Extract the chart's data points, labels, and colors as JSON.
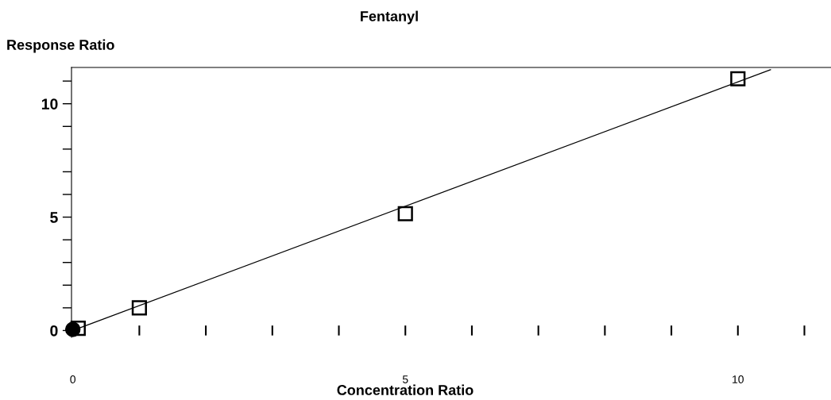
{
  "chart_data": {
    "type": "scatter",
    "title": "Fentanyl",
    "ylabel": "Response Ratio",
    "xlabel": "Concentration Ratio",
    "series": [
      {
        "marker": "square",
        "color": "#000000",
        "x": [
          0.08,
          1,
          5,
          10
        ],
        "values": [
          0.1,
          1.0,
          5.15,
          11.1
        ]
      },
      {
        "marker": "circle",
        "color": "#000000",
        "x": [
          0
        ],
        "values": [
          0.05
        ]
      },
      {
        "type": "line",
        "marker": "none",
        "color": "#000000",
        "x": [
          0,
          10.49
        ],
        "values": [
          0,
          11.5
        ]
      }
    ],
    "xlim": [
      -0.02,
      11.4
    ],
    "ylim": [
      -0.3,
      11.6
    ],
    "xticks": [
      0,
      {
        "value": 1,
        "label": null
      },
      {
        "value": 2,
        "label": null
      },
      {
        "value": 3,
        "label": null
      },
      {
        "value": 4,
        "label": null
      },
      5,
      {
        "value": 6,
        "label": null
      },
      {
        "value": 7,
        "label": null
      },
      {
        "value": 8,
        "label": null
      },
      {
        "value": 9,
        "label": null
      },
      10,
      {
        "value": 11,
        "label": null
      }
    ],
    "yticks": [
      0,
      {
        "value": 1,
        "label": null
      },
      {
        "value": 2,
        "label": null
      },
      {
        "value": 3,
        "label": null
      },
      {
        "value": 4,
        "label": null
      },
      5,
      {
        "value": 6,
        "label": null
      },
      {
        "value": 7,
        "label": null
      },
      {
        "value": 8,
        "label": null
      },
      {
        "value": 9,
        "label": null
      },
      10,
      {
        "value": 11,
        "label": null
      }
    ],
    "grid": false,
    "legend": false
  }
}
